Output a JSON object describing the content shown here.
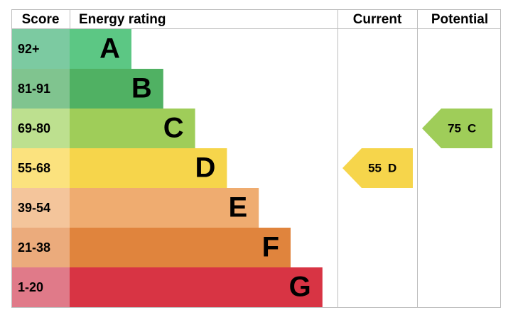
{
  "header": {
    "score": "Score",
    "rating": "Energy rating",
    "current": "Current",
    "potential": "Potential"
  },
  "rows": [
    {
      "score": "92+",
      "letter": "A",
      "color": "#5cc784",
      "score_color": "#7ccaa1"
    },
    {
      "score": "81-91",
      "letter": "B",
      "color": "#50b163",
      "score_color": "#80c48f"
    },
    {
      "score": "69-80",
      "letter": "C",
      "color": "#9fcd59",
      "score_color": "#bde08f"
    },
    {
      "score": "55-68",
      "letter": "D",
      "color": "#f6d54b",
      "score_color": "#fbe27e"
    },
    {
      "score": "39-54",
      "letter": "E",
      "color": "#efac70",
      "score_color": "#f4c59b"
    },
    {
      "score": "21-38",
      "letter": "F",
      "color": "#e0843d",
      "score_color": "#ebab7c"
    },
    {
      "score": "1-20",
      "letter": "G",
      "color": "#d83444",
      "score_color": "#e07a89"
    }
  ],
  "current": {
    "value": 55,
    "rating": "D"
  },
  "potential": {
    "value": 75,
    "rating": "C"
  }
}
